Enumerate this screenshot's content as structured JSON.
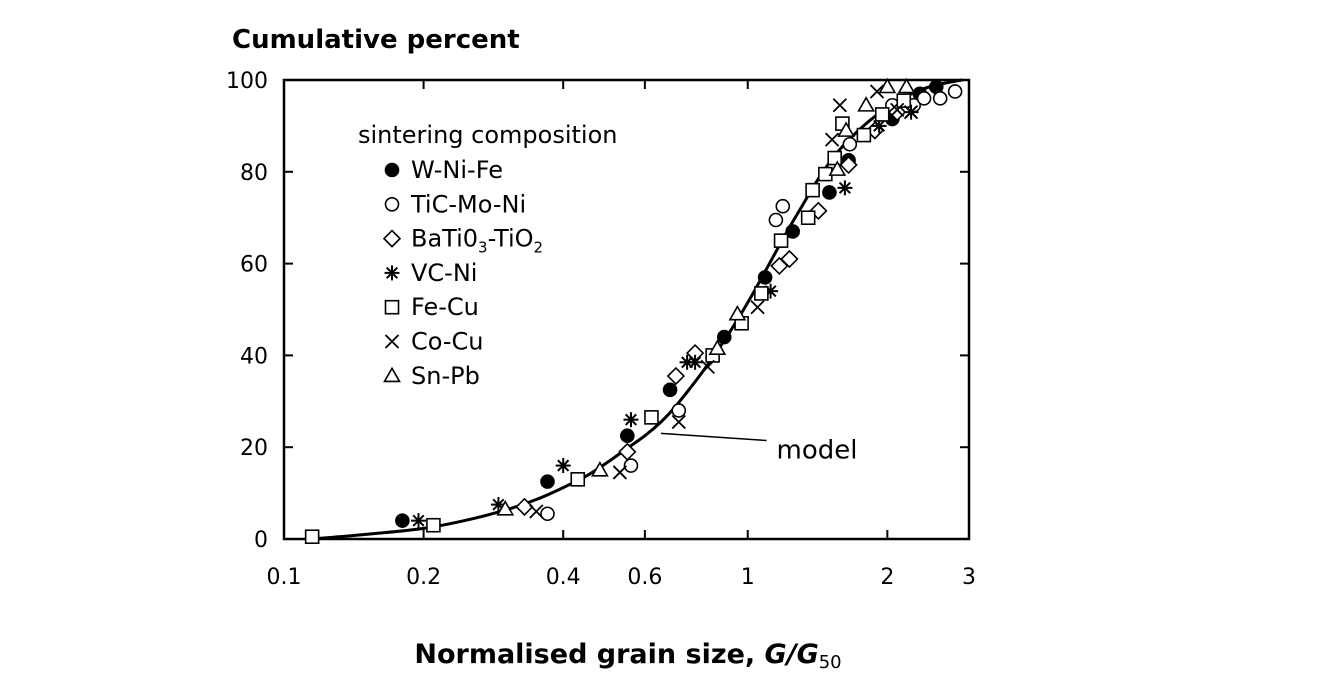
{
  "chart_data": {
    "type": "scatter",
    "ylabel": "Cumulative percent",
    "xlabel_main": "Normalised grain size, ",
    "xlabel_italic": "G/G",
    "xlabel_sub": "50",
    "x_scale": "log",
    "xlim": [
      0.1,
      3
    ],
    "ylim": [
      0,
      100
    ],
    "x_ticks": [
      0.1,
      0.2,
      0.4,
      0.6,
      1,
      2,
      3
    ],
    "x_tick_labels": [
      "0.1",
      "0.2",
      "0.4",
      "0.6",
      "1",
      "2",
      "3"
    ],
    "y_ticks": [
      0,
      20,
      40,
      60,
      80,
      100
    ],
    "y_tick_labels": [
      "0",
      "20",
      "40",
      "60",
      "80",
      "100"
    ],
    "grid": false,
    "legend": {
      "title": "sintering composition",
      "placement": "top-left",
      "entries": [
        {
          "marker": "filled-circle",
          "parts": [
            {
              "t": "W-Ni-Fe"
            }
          ]
        },
        {
          "marker": "open-circle",
          "parts": [
            {
              "t": "TiC-Mo-Ni"
            }
          ]
        },
        {
          "marker": "diamond",
          "parts": [
            {
              "t": "BaTi0"
            },
            {
              "t": "3",
              "sub": true
            },
            {
              "t": "-TiO"
            },
            {
              "t": "2",
              "sub": true
            }
          ]
        },
        {
          "marker": "asterisk",
          "parts": [
            {
              "t": "VC-Ni"
            }
          ]
        },
        {
          "marker": "square",
          "parts": [
            {
              "t": "Fe-Cu"
            }
          ]
        },
        {
          "marker": "cross",
          "parts": [
            {
              "t": "Co-Cu"
            }
          ]
        },
        {
          "marker": "triangle",
          "parts": [
            {
              "t": "Sn-Pb"
            }
          ]
        }
      ]
    },
    "annotation": {
      "text": "model",
      "point": [
        0.65,
        23
      ],
      "label_at": [
        0.9,
        19.5
      ]
    },
    "model_curve": {
      "x": [
        0.115,
        0.15,
        0.2,
        0.25,
        0.3,
        0.35,
        0.4,
        0.45,
        0.5,
        0.55,
        0.6,
        0.65,
        0.7,
        0.8,
        0.9,
        1.0,
        1.1,
        1.2,
        1.3,
        1.4,
        1.5,
        1.6,
        1.8,
        2.0,
        2.2,
        2.5,
        2.9
      ],
      "y": [
        0,
        1,
        2.3,
        4.2,
        6.3,
        8.6,
        11.2,
        13.8,
        16.8,
        19.8,
        22.5,
        25.5,
        29,
        36.5,
        44,
        51.5,
        59,
        66,
        72,
        77.5,
        82,
        85.5,
        90.5,
        94,
        96.5,
        98.7,
        100
      ]
    },
    "series": [
      {
        "marker": "filled-circle",
        "x": [
          0.18,
          0.37,
          0.55,
          0.68,
          0.89,
          1.09,
          1.25,
          1.5,
          1.65,
          2.05,
          2.35,
          2.55
        ],
        "y": [
          4,
          12.5,
          22.5,
          32.5,
          44,
          57,
          67,
          75.5,
          82.5,
          91.5,
          97,
          98.5
        ]
      },
      {
        "marker": "open-circle",
        "x": [
          0.37,
          0.56,
          0.71,
          1.15,
          1.19,
          1.66,
          2.05,
          2.28,
          2.4,
          2.6,
          2.8
        ],
        "y": [
          5.5,
          16,
          28,
          69.5,
          72.5,
          86,
          94.5,
          94.5,
          96,
          96,
          97.5
        ]
      },
      {
        "marker": "diamond",
        "x": [
          0.33,
          0.55,
          0.7,
          0.77,
          1.17,
          1.23,
          1.42,
          1.65,
          1.88,
          2.1
        ],
        "y": [
          7,
          19,
          35.5,
          40.5,
          59.5,
          61,
          71.5,
          81.5,
          89,
          93
        ]
      },
      {
        "marker": "asterisk",
        "x": [
          0.195,
          0.29,
          0.4,
          0.56,
          0.74,
          0.77,
          1.12,
          1.62,
          1.92,
          2.25
        ],
        "y": [
          4,
          7.5,
          16,
          26,
          38.5,
          38.5,
          54,
          76.5,
          90,
          93
        ]
      },
      {
        "marker": "square",
        "x": [
          0.115,
          0.21,
          0.43,
          0.62,
          0.84,
          0.97,
          1.07,
          1.18,
          1.35,
          1.38,
          1.47,
          1.54,
          1.6,
          1.78,
          1.95,
          2.17
        ],
        "y": [
          0.5,
          3,
          13,
          26.5,
          40,
          47,
          53.5,
          65,
          70,
          76,
          79.5,
          83,
          90.5,
          88,
          92.5,
          95.5
        ]
      },
      {
        "marker": "cross",
        "x": [
          0.35,
          0.53,
          0.71,
          0.82,
          1.05,
          1.52,
          1.58,
          1.9,
          2.1,
          2.25
        ],
        "y": [
          6,
          14.5,
          25.5,
          37.5,
          50.5,
          87,
          94.5,
          97.5,
          93.5,
          93
        ]
      },
      {
        "marker": "triangle",
        "x": [
          0.3,
          0.48,
          0.86,
          0.95,
          1.56,
          1.63,
          1.8,
          2.0,
          2.2
        ],
        "y": [
          6.5,
          15,
          41.5,
          49,
          80.5,
          89,
          94.5,
          98.5,
          98.5
        ]
      }
    ]
  }
}
